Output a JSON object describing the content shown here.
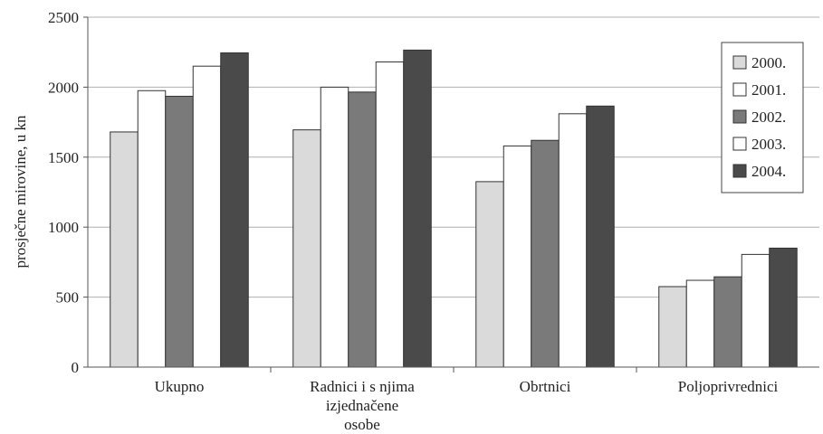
{
  "chart_data": {
    "type": "bar",
    "title": "",
    "xlabel": "",
    "ylabel": "prosječne mirovine, u kn",
    "ylim": [
      0,
      2500
    ],
    "yticks": [
      0,
      500,
      1000,
      1500,
      2000,
      2500
    ],
    "grid": true,
    "legend_position": "right",
    "categories": [
      [
        "Ukupno"
      ],
      [
        "Radnici i s njima",
        "izjednačene",
        "osobe"
      ],
      [
        "Obrtnici"
      ],
      [
        "Poljoprivrednici"
      ]
    ],
    "series": [
      {
        "name": "2000.",
        "color": "#dadada",
        "values": [
          1680,
          1695,
          1325,
          575
        ]
      },
      {
        "name": "2001.",
        "color": "#ffffff",
        "values": [
          1975,
          2000,
          1580,
          620
        ]
      },
      {
        "name": "2002.",
        "color": "#7a7a7a",
        "values": [
          1935,
          1965,
          1620,
          645
        ]
      },
      {
        "name": "2003.",
        "color": "#ffffff",
        "values": [
          2150,
          2180,
          1810,
          805
        ]
      },
      {
        "name": "2004.",
        "color": "#4a4a4a",
        "values": [
          2245,
          2265,
          1865,
          850
        ]
      }
    ]
  }
}
